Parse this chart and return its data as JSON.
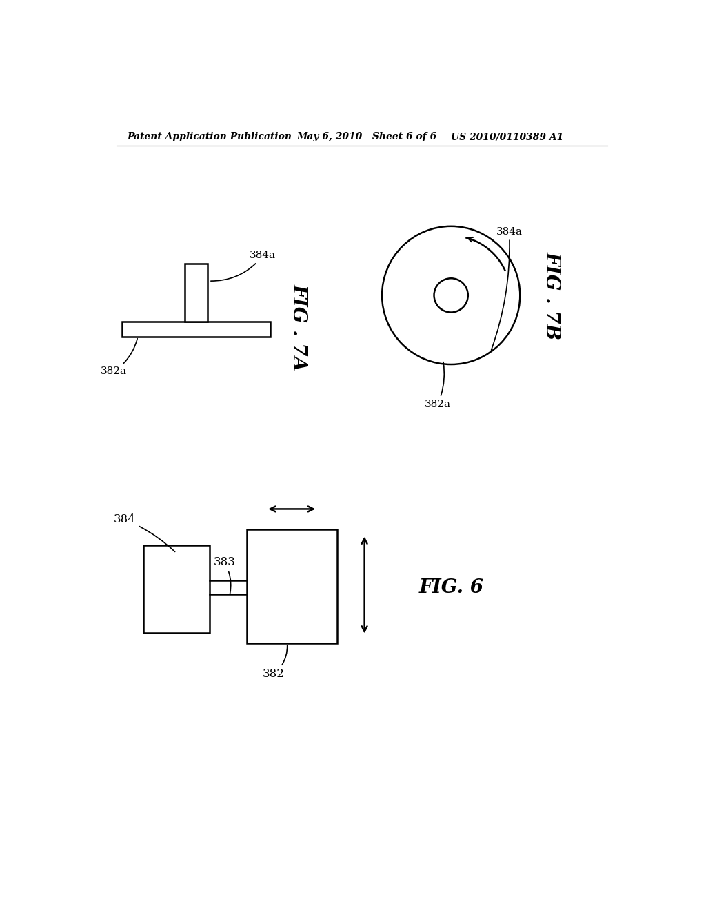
{
  "background_color": "#ffffff",
  "header_left": "Patent Application Publication",
  "header_center": "May 6, 2010   Sheet 6 of 6",
  "header_right": "US 2010/0110389 A1",
  "fig6_label": "FIG. 6",
  "fig7a_label": "FIG . 7A",
  "fig7b_label": "FIG . 7B",
  "label_382": "382",
  "label_383": "383",
  "label_384": "384",
  "label_382a": "382a",
  "label_384a": "384a"
}
